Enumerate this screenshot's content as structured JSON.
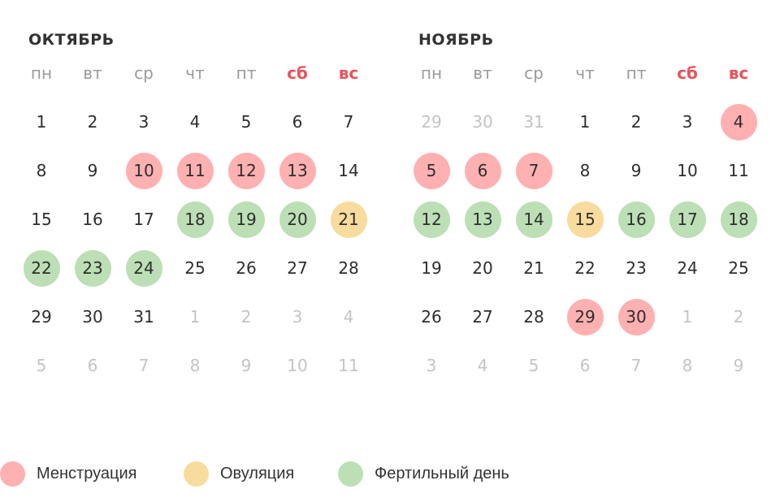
{
  "colors": {
    "menstruation": "#ffb0b0",
    "ovulation": "#f8dc9e",
    "fertile": "#bcdfb5",
    "weekend_header": "#e8555a",
    "weekday_header": "#9a9a9a",
    "other_month_day": "#c4c4c4"
  },
  "weekdays": [
    "пн",
    "вт",
    "ср",
    "чт",
    "пт",
    "сб",
    "вс"
  ],
  "months": [
    {
      "title": "ОКТЯБРЬ",
      "weeks": [
        [
          {
            "d": "1"
          },
          {
            "d": "2"
          },
          {
            "d": "3"
          },
          {
            "d": "4"
          },
          {
            "d": "5"
          },
          {
            "d": "6"
          },
          {
            "d": "7"
          }
        ],
        [
          {
            "d": "8"
          },
          {
            "d": "9"
          },
          {
            "d": "10",
            "t": "menstruation"
          },
          {
            "d": "11",
            "t": "menstruation"
          },
          {
            "d": "12",
            "t": "menstruation"
          },
          {
            "d": "13",
            "t": "menstruation"
          },
          {
            "d": "14"
          }
        ],
        [
          {
            "d": "15"
          },
          {
            "d": "16"
          },
          {
            "d": "17"
          },
          {
            "d": "18",
            "t": "fertile"
          },
          {
            "d": "19",
            "t": "fertile"
          },
          {
            "d": "20",
            "t": "fertile"
          },
          {
            "d": "21",
            "t": "ovulation"
          }
        ],
        [
          {
            "d": "22",
            "t": "fertile"
          },
          {
            "d": "23",
            "t": "fertile"
          },
          {
            "d": "24",
            "t": "fertile"
          },
          {
            "d": "25"
          },
          {
            "d": "26"
          },
          {
            "d": "27"
          },
          {
            "d": "28"
          }
        ],
        [
          {
            "d": "29"
          },
          {
            "d": "30"
          },
          {
            "d": "31"
          },
          {
            "d": "1",
            "o": true
          },
          {
            "d": "2",
            "o": true
          },
          {
            "d": "3",
            "o": true
          },
          {
            "d": "4",
            "o": true
          }
        ],
        [
          {
            "d": "5",
            "o": true
          },
          {
            "d": "6",
            "o": true
          },
          {
            "d": "7",
            "o": true
          },
          {
            "d": "8",
            "o": true
          },
          {
            "d": "9",
            "o": true
          },
          {
            "d": "10",
            "o": true
          },
          {
            "d": "11",
            "o": true
          }
        ]
      ]
    },
    {
      "title": "НОЯБРЬ",
      "weeks": [
        [
          {
            "d": "29",
            "o": true
          },
          {
            "d": "30",
            "o": true
          },
          {
            "d": "31",
            "o": true
          },
          {
            "d": "1"
          },
          {
            "d": "2"
          },
          {
            "d": "3"
          },
          {
            "d": "4",
            "t": "menstruation"
          }
        ],
        [
          {
            "d": "5",
            "t": "menstruation"
          },
          {
            "d": "6",
            "t": "menstruation"
          },
          {
            "d": "7",
            "t": "menstruation"
          },
          {
            "d": "8"
          },
          {
            "d": "9"
          },
          {
            "d": "10"
          },
          {
            "d": "11"
          }
        ],
        [
          {
            "d": "12",
            "t": "fertile"
          },
          {
            "d": "13",
            "t": "fertile"
          },
          {
            "d": "14",
            "t": "fertile"
          },
          {
            "d": "15",
            "t": "ovulation"
          },
          {
            "d": "16",
            "t": "fertile"
          },
          {
            "d": "17",
            "t": "fertile"
          },
          {
            "d": "18",
            "t": "fertile"
          }
        ],
        [
          {
            "d": "19"
          },
          {
            "d": "20"
          },
          {
            "d": "21"
          },
          {
            "d": "22"
          },
          {
            "d": "23"
          },
          {
            "d": "24"
          },
          {
            "d": "25"
          }
        ],
        [
          {
            "d": "26"
          },
          {
            "d": "27"
          },
          {
            "d": "28"
          },
          {
            "d": "29",
            "t": "menstruation"
          },
          {
            "d": "30",
            "t": "menstruation"
          },
          {
            "d": "1",
            "o": true
          },
          {
            "d": "2",
            "o": true
          }
        ],
        [
          {
            "d": "3",
            "o": true
          },
          {
            "d": "4",
            "o": true
          },
          {
            "d": "5",
            "o": true
          },
          {
            "d": "6",
            "o": true
          },
          {
            "d": "7",
            "o": true
          },
          {
            "d": "8",
            "o": true
          },
          {
            "d": "9",
            "o": true
          }
        ]
      ]
    }
  ],
  "legend": [
    {
      "key": "menstruation",
      "label": "Менструация"
    },
    {
      "key": "ovulation",
      "label": "Овуляция"
    },
    {
      "key": "fertile",
      "label": "Фертильный день"
    }
  ]
}
